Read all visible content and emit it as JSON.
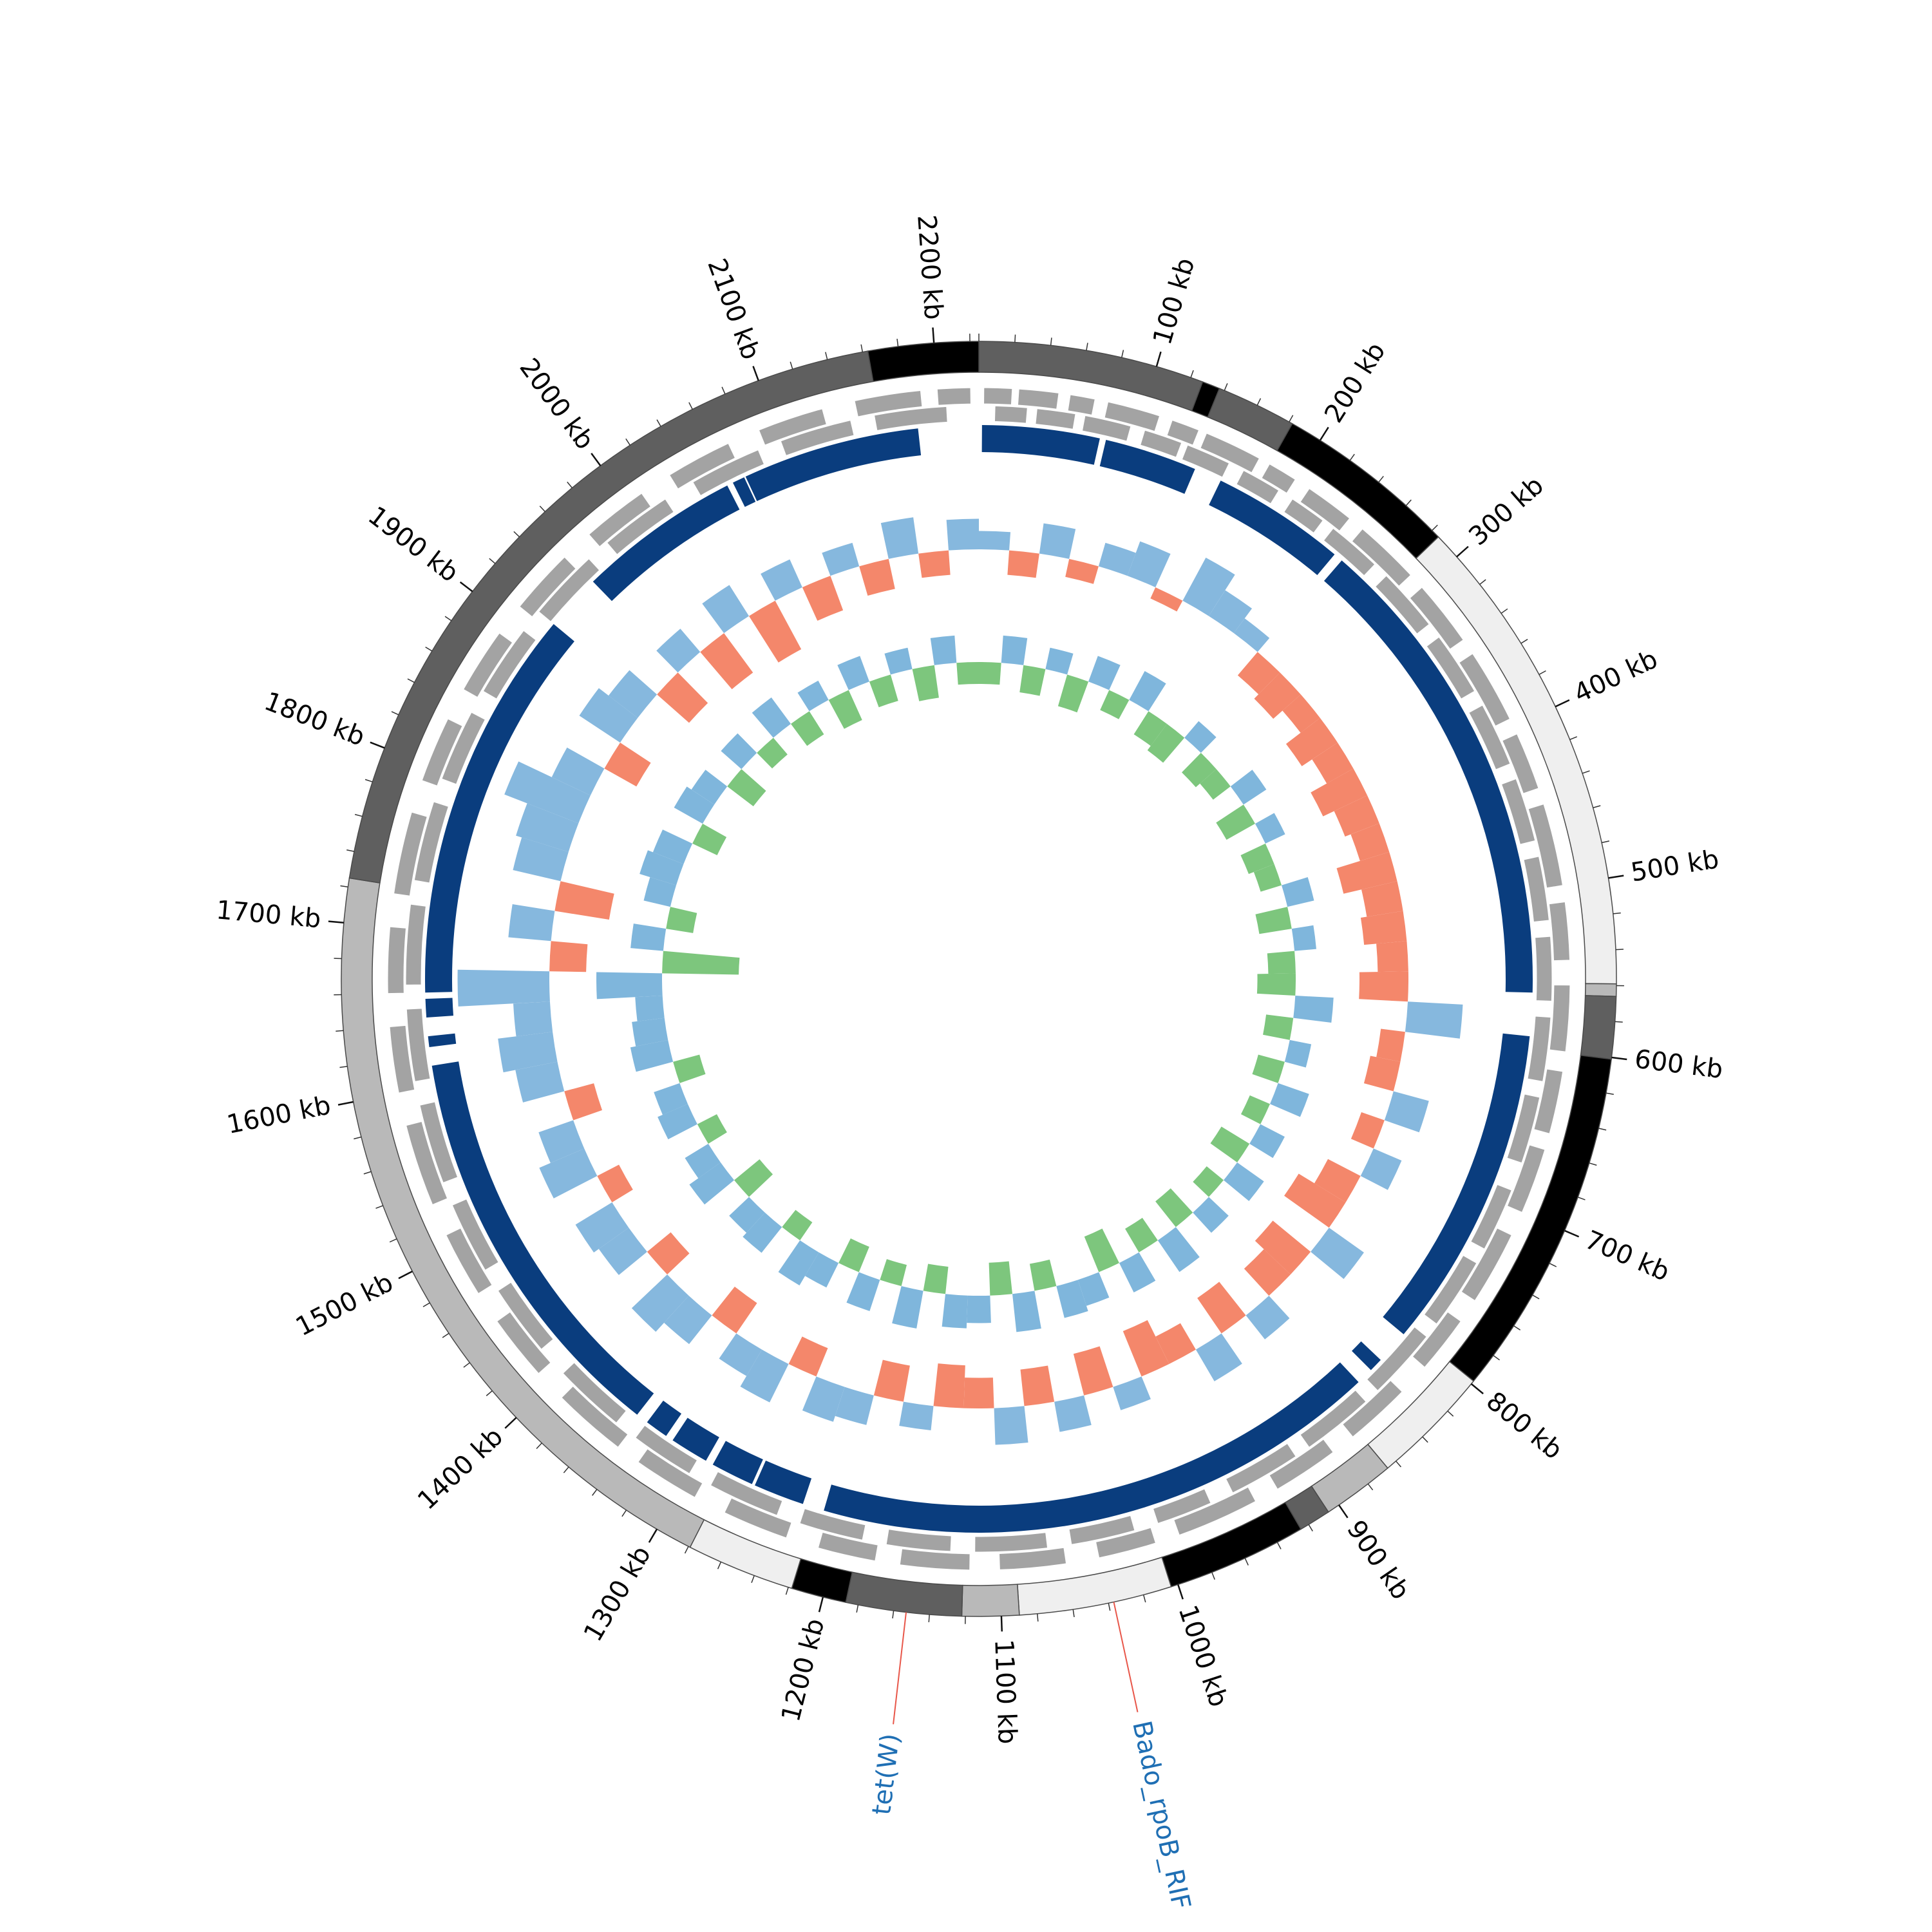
{
  "chart_data": {
    "type": "circos",
    "genome_length": 2225,
    "ticks": [
      {
        "value": 100,
        "label": "100 kb"
      },
      {
        "value": 200,
        "label": "200 kb"
      },
      {
        "value": 300,
        "label": "300 kb"
      },
      {
        "value": 400,
        "label": "400 kb"
      },
      {
        "value": 500,
        "label": "500 kb"
      },
      {
        "value": 600,
        "label": "600 kb"
      },
      {
        "value": 700,
        "label": "700 kb"
      },
      {
        "value": 800,
        "label": "800 kb"
      },
      {
        "value": 900,
        "label": "900 kb"
      },
      {
        "value": 1000,
        "label": "1000 kb"
      },
      {
        "value": 1100,
        "label": "1100 kb"
      },
      {
        "value": 1200,
        "label": "1200 kb"
      },
      {
        "value": 1300,
        "label": "1300 kb"
      },
      {
        "value": 1400,
        "label": "1400 kb"
      },
      {
        "value": 1500,
        "label": "1500 kb"
      },
      {
        "value": 1600,
        "label": "1600 kb"
      },
      {
        "value": 1700,
        "label": "1700 kb"
      },
      {
        "value": 1800,
        "label": "1800 kb"
      },
      {
        "value": 1900,
        "label": "1900 kb"
      },
      {
        "value": 2000,
        "label": "2000 kb"
      },
      {
        "value": 2100,
        "label": "2100 kb"
      },
      {
        "value": 2200,
        "label": "2200 kb"
      }
    ],
    "minor_tick_step": 20,
    "contigs": [
      {
        "start": 0,
        "end": 127,
        "color": "#5f5f5f"
      },
      {
        "start": 127,
        "end": 137,
        "color": "#000000"
      },
      {
        "start": 137,
        "end": 182,
        "color": "#5f5f5f"
      },
      {
        "start": 182,
        "end": 285,
        "color": "#000000"
      },
      {
        "start": 285,
        "end": 559,
        "color": "#efefef"
      },
      {
        "start": 559,
        "end": 566,
        "color": "#b9b9b9"
      },
      {
        "start": 566,
        "end": 601,
        "color": "#5f5f5f"
      },
      {
        "start": 601,
        "end": 798,
        "color": "#000000"
      },
      {
        "start": 798,
        "end": 866,
        "color": "#efefef"
      },
      {
        "start": 866,
        "end": 907,
        "color": "#b9b9b9"
      },
      {
        "start": 907,
        "end": 925,
        "color": "#5f5f5f"
      },
      {
        "start": 925,
        "end": 1004,
        "color": "#000000"
      },
      {
        "start": 1004,
        "end": 1090,
        "color": "#efefef"
      },
      {
        "start": 1090,
        "end": 1122,
        "color": "#b9b9b9"
      },
      {
        "start": 1122,
        "end": 1187,
        "color": "#5f5f5f"
      },
      {
        "start": 1187,
        "end": 1218,
        "color": "#000000"
      },
      {
        "start": 1218,
        "end": 1279,
        "color": "#efefef"
      },
      {
        "start": 1279,
        "end": 1725,
        "color": "#b9b9b9"
      },
      {
        "start": 1725,
        "end": 2163,
        "color": "#5f5f5f"
      },
      {
        "start": 2163,
        "end": 2225,
        "color": "#000000"
      }
    ],
    "gene_color": "#a3a3a3",
    "genes_forward": [
      [
        3,
        20
      ],
      [
        24,
        48
      ],
      [
        55,
        70
      ],
      [
        78,
        110
      ],
      [
        118,
        135
      ],
      [
        140,
        175
      ],
      [
        182,
        200
      ],
      [
        210,
        240
      ],
      [
        250,
        290
      ],
      [
        300,
        340
      ],
      [
        350,
        395
      ],
      [
        405,
        440
      ],
      [
        450,
        500
      ],
      [
        510,
        545
      ],
      [
        560,
        600
      ],
      [
        612,
        650
      ],
      [
        660,
        700
      ],
      [
        715,
        760
      ],
      [
        775,
        810
      ],
      [
        830,
        870
      ],
      [
        885,
        925
      ],
      [
        940,
        990
      ],
      [
        1005,
        1040
      ],
      [
        1060,
        1100
      ],
      [
        1118,
        1160
      ],
      [
        1175,
        1210
      ],
      [
        1230,
        1270
      ],
      [
        1290,
        1330
      ],
      [
        1345,
        1390
      ],
      [
        1410,
        1450
      ],
      [
        1470,
        1510
      ],
      [
        1530,
        1580
      ],
      [
        1600,
        1640
      ],
      [
        1660,
        1700
      ],
      [
        1720,
        1770
      ],
      [
        1790,
        1830
      ],
      [
        1850,
        1890
      ],
      [
        1910,
        1950
      ],
      [
        1970,
        2010
      ],
      [
        2030,
        2070
      ],
      [
        2090,
        2130
      ],
      [
        2150,
        2190
      ],
      [
        2200,
        2220
      ]
    ],
    "genes_reverse": [
      [
        10,
        30
      ],
      [
        36,
        60
      ],
      [
        66,
        95
      ],
      [
        104,
        128
      ],
      [
        132,
        160
      ],
      [
        170,
        195
      ],
      [
        205,
        228
      ],
      [
        236,
        270
      ],
      [
        280,
        320
      ],
      [
        330,
        370
      ],
      [
        380,
        420
      ],
      [
        430,
        470
      ],
      [
        480,
        520
      ],
      [
        530,
        570
      ],
      [
        580,
        620
      ],
      [
        630,
        672
      ],
      [
        690,
        730
      ],
      [
        740,
        785
      ],
      [
        795,
        840
      ],
      [
        850,
        895
      ],
      [
        905,
        950
      ],
      [
        965,
        1000
      ],
      [
        1015,
        1055
      ],
      [
        1070,
        1115
      ],
      [
        1130,
        1170
      ],
      [
        1185,
        1225
      ],
      [
        1240,
        1285
      ],
      [
        1300,
        1340
      ],
      [
        1355,
        1400
      ],
      [
        1420,
        1465
      ],
      [
        1480,
        1525
      ],
      [
        1540,
        1590
      ],
      [
        1605,
        1650
      ],
      [
        1665,
        1715
      ],
      [
        1730,
        1780
      ],
      [
        1795,
        1840
      ],
      [
        1855,
        1900
      ],
      [
        1915,
        1960
      ],
      [
        1975,
        2020
      ],
      [
        2040,
        2085
      ],
      [
        2100,
        2145
      ],
      [
        2160,
        2205
      ]
    ],
    "alignment_color": "#0a3d7e",
    "alignment_blocks": [
      [
        2,
        78
      ],
      [
        82,
        142
      ],
      [
        160,
        247
      ],
      [
        253,
        565
      ],
      [
        593,
        803
      ],
      [
        825,
        834
      ],
      [
        845,
        1213
      ],
      [
        1227,
        1260
      ],
      [
        1262,
        1290
      ],
      [
        1295,
        1320
      ],
      [
        1325,
        1340
      ],
      [
        1348,
        1613
      ],
      [
        1625,
        1632
      ],
      [
        1644,
        1656
      ],
      [
        1660,
        1915
      ],
      [
        1952,
        2058
      ],
      [
        2062,
        2070
      ],
      [
        2071,
        2186
      ]
    ],
    "gc_content": {
      "bin": 25,
      "positive_color": "#86b8de",
      "negative_color": "#f4876b",
      "values": [
        0.3,
        -0.4,
        0.5,
        -0.3,
        0.4,
        0.6,
        -0.2,
        0.8,
        0.5,
        0.3,
        -0.5,
        -0.6,
        -0.4,
        -0.7,
        -0.5,
        -0.8,
        -0.6,
        -0.5,
        -0.9,
        -0.6,
        -0.7,
        -0.5,
        -0.8,
        0.9,
        -0.4,
        -0.5,
        0.6,
        -0.4,
        0.5,
        -0.6,
        -0.9,
        0.7,
        -0.8,
        -0.6,
        0.5,
        -0.7,
        0.6,
        -0.5,
        -0.8,
        0.4,
        -0.7,
        0.5,
        -0.6,
        0.6,
        -0.5,
        -0.7,
        0.4,
        -0.6,
        0.5,
        0.6,
        -0.5,
        0.7,
        0.5,
        -0.6,
        0.6,
        0.8,
        -0.5,
        0.6,
        0.7,
        -0.4,
        0.8,
        0.6,
        -0.5,
        0.7,
        0.9,
        0.6,
        1.5,
        -0.6,
        0.7,
        -0.9,
        0.8,
        0.9,
        1.3,
        0.7,
        -0.6,
        0.8,
        0.6,
        -0.7,
        0.5,
        -0.8,
        0.6,
        -0.9,
        0.5,
        -0.6,
        0.4,
        -0.5,
        0.6,
        -0.4,
        0.5
      ]
    },
    "gc_skew": {
      "bin": 25,
      "positive_color": "#7fb6dc",
      "negative_color": "#7dc67d",
      "values": [
        -0.4,
        0.5,
        -0.5,
        0.4,
        -0.6,
        0.5,
        -0.4,
        0.6,
        -0.5,
        -0.6,
        0.4,
        -0.5,
        -0.4,
        0.5,
        -0.6,
        0.4,
        -0.5,
        -0.4,
        0.5,
        -0.6,
        0.4,
        -0.5,
        -0.7,
        0.7,
        -0.5,
        0.4,
        -0.5,
        0.6,
        -0.4,
        0.5,
        -0.6,
        0.6,
        -0.4,
        0.5,
        -0.6,
        0.7,
        -0.5,
        0.6,
        -0.7,
        0.5,
        0.6,
        -0.5,
        0.7,
        -0.6,
        0.5,
        0.6,
        -0.5,
        0.7,
        -0.4,
        0.6,
        -0.5,
        0.5,
        0.7,
        -0.4,
        0.6,
        0.5,
        -0.6,
        0.7,
        0.5,
        -0.4,
        0.6,
        0.5,
        -0.5,
        0.7,
        0.6,
        0.5,
        1.2,
        -1.4,
        0.6,
        -0.5,
        0.5,
        0.7,
        0.6,
        -0.5,
        0.6,
        0.5,
        -0.6,
        0.5,
        -0.4,
        0.6,
        -0.5,
        0.4,
        -0.6,
        0.5,
        -0.5,
        0.4,
        -0.6,
        0.5,
        -0.4
      ]
    },
    "annotation_color": "#1f6fb4",
    "annotation_line_color": "#e8574a",
    "annotations": [
      {
        "label": "tet(W)",
        "position": 1153
      },
      {
        "label": "Bado_rpoB_RIF",
        "position": 1037
      }
    ]
  }
}
